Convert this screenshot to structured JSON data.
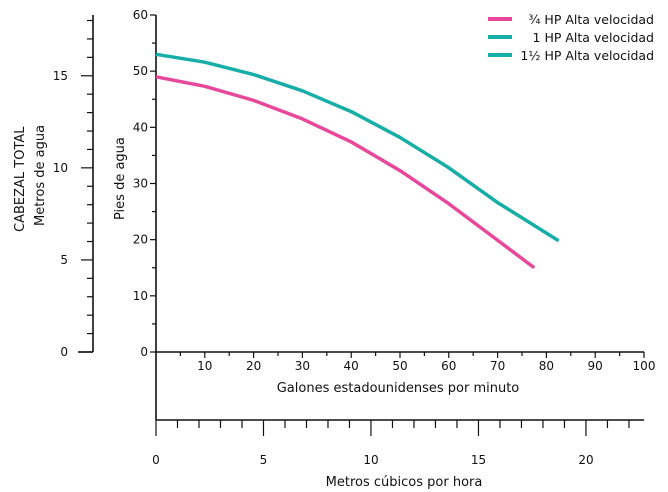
{
  "chart_data": {
    "type": "line",
    "title": "",
    "xlabel": "Galones estadounidenses por minuto",
    "ylabel": "Pies de agua",
    "xlim": [
      0,
      100
    ],
    "ylim": [
      0,
      60
    ],
    "x_ticks": [
      "10",
      "20",
      "30",
      "40",
      "50",
      "60",
      "70",
      "80",
      "90",
      "100"
    ],
    "y_ticks": [
      "0",
      "10",
      "20",
      "30",
      "40",
      "50",
      "60"
    ],
    "secondary_y": {
      "label_line1": "CABEZAL TOTAL",
      "label_line2": "Metros de agua",
      "lim": [
        0,
        18.3
      ],
      "ticks": [
        "0",
        "5",
        "10",
        "15"
      ]
    },
    "secondary_x": {
      "label": "Metros cúbicos por hora",
      "lim": [
        0,
        22.7
      ],
      "ticks": [
        "0",
        "5",
        "10",
        "15",
        "20"
      ]
    },
    "legend_position": "top-right",
    "series": [
      {
        "name": "¾ HP Alta velocidad",
        "color": "#e8489a",
        "points": [
          [
            0,
            49
          ],
          [
            10,
            47.3
          ],
          [
            20,
            44.8
          ],
          [
            30,
            41.5
          ],
          [
            40,
            37.4
          ],
          [
            50,
            32.3
          ],
          [
            60,
            26.4
          ],
          [
            70,
            19.9
          ],
          [
            77.5,
            15
          ]
        ]
      },
      {
        "name": "1 HP Alta velocidad",
        "color": "#16aea6",
        "points": [
          [
            0,
            53
          ],
          [
            10,
            51.6
          ],
          [
            20,
            49.4
          ],
          [
            30,
            46.5
          ],
          [
            40,
            42.8
          ],
          [
            50,
            38.2
          ],
          [
            60,
            32.8
          ],
          [
            70,
            26.6
          ],
          [
            82.5,
            19.8
          ]
        ]
      },
      {
        "name": "1½ HP Alta velocidad",
        "color": "#16aea6",
        "points": []
      }
    ]
  }
}
